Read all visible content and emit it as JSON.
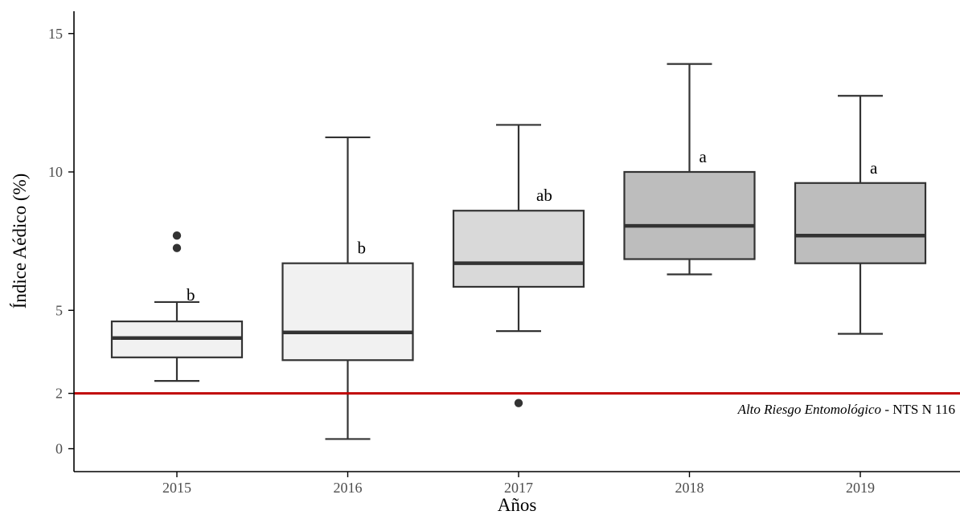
{
  "chart_data": {
    "type": "box",
    "title": "",
    "xlabel": "Años",
    "ylabel": "Índice Aédico (%)",
    "ylim": [
      -0.6,
      15.8
    ],
    "yticks": [
      0,
      2,
      5,
      10,
      15
    ],
    "ytick_labels": [
      "0",
      "2",
      "5",
      "10",
      "15"
    ],
    "grid": false,
    "categories": [
      "2015",
      "2016",
      "2017",
      "2018",
      "2019"
    ],
    "boxes": [
      {
        "category": "2015",
        "whisker_low": 2.45,
        "q1": 3.3,
        "median": 4.0,
        "q3": 4.6,
        "whisker_high": 5.3,
        "outliers": [
          7.25,
          7.7
        ],
        "letter": "b",
        "fill": "#f1f1f1"
      },
      {
        "category": "2016",
        "whisker_low": 0.35,
        "q1": 3.2,
        "median": 4.2,
        "q3": 6.7,
        "whisker_high": 11.25,
        "outliers": [],
        "letter": "b",
        "fill": "#f1f1f1"
      },
      {
        "category": "2017",
        "whisker_low": 4.25,
        "q1": 5.85,
        "median": 6.7,
        "q3": 8.6,
        "whisker_high": 11.7,
        "outliers": [
          1.65
        ],
        "letter": "ab",
        "fill": "#d9d9d9"
      },
      {
        "category": "2018",
        "whisker_low": 6.3,
        "q1": 6.85,
        "median": 8.05,
        "q3": 10.0,
        "whisker_high": 13.9,
        "outliers": [],
        "letter": "a",
        "fill": "#bdbdbd"
      },
      {
        "category": "2019",
        "whisker_low": 4.15,
        "q1": 6.7,
        "median": 7.7,
        "q3": 9.6,
        "whisker_high": 12.75,
        "outliers": [],
        "letter": "a",
        "fill": "#bdbdbd"
      }
    ],
    "reference_line": {
      "y": 2,
      "color": "#c00000",
      "label_italic": "Alto Riesgo Entomológico",
      "label_normal": " - NTS N  116"
    }
  }
}
